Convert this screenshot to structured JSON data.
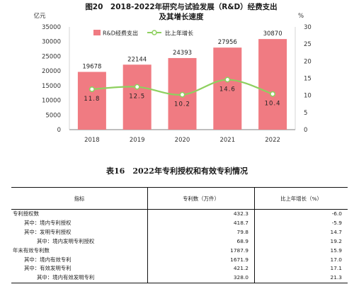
{
  "chart_data": {
    "type": "bar",
    "title": "图20　2018-2022年研究与试验发展（R&D）经费支出",
    "title_line2": "及其增长速度",
    "y_left_unit": "亿元",
    "y_right_unit": "%",
    "categories": [
      "2018",
      "2019",
      "2020",
      "2021",
      "2022"
    ],
    "series": [
      {
        "name": "R&D经费支出",
        "kind": "bar",
        "axis": "left",
        "color": "#f07b82",
        "values": [
          19678,
          22144,
          24393,
          27956,
          30870
        ],
        "labels": [
          "19678",
          "22144",
          "24393",
          "27956",
          "30870"
        ]
      },
      {
        "name": "比上年增长",
        "kind": "line",
        "axis": "right",
        "color": "#8ed05f",
        "values": [
          11.8,
          12.5,
          10.2,
          14.6,
          10.4
        ],
        "labels": [
          "11.8",
          "12.5",
          "10.2",
          "14.6",
          "10.4"
        ]
      }
    ],
    "ylim_left": [
      0,
      35000
    ],
    "yticks_left": [
      0,
      5000,
      10000,
      15000,
      20000,
      25000,
      30000,
      35000
    ],
    "ylim_right": [
      0,
      30
    ],
    "yticks_right": [
      0,
      5,
      10,
      15,
      20,
      25,
      30
    ],
    "legend": "top-left",
    "grid": false
  },
  "table": {
    "title": "表16　2022年专利授权和有效专利情况",
    "headers": [
      "指标",
      "专利数（万件）",
      "比上年增长（%）"
    ],
    "rows": [
      {
        "label": "专利授权数",
        "indent": 0,
        "count": "432.3",
        "growth": "-6.0"
      },
      {
        "label": "其中：境内专利授权",
        "indent": 1,
        "count": "418.7",
        "growth": "-5.9"
      },
      {
        "label": "其中：发明专利授权",
        "indent": 1,
        "count": "79.8",
        "growth": "14.7"
      },
      {
        "label": "其中：境内发明专利授权",
        "indent": 2,
        "count": "68.9",
        "growth": "19.2"
      },
      {
        "label": "年末有效专利数",
        "indent": 0,
        "count": "1787.9",
        "growth": "15.9"
      },
      {
        "label": "其中：境内有效专利",
        "indent": 1,
        "count": "1671.9",
        "growth": "17.0"
      },
      {
        "label": "其中：有效发明专利",
        "indent": 1,
        "count": "421.2",
        "growth": "17.1"
      },
      {
        "label": "其中：境内有效发明专利",
        "indent": 2,
        "count": "328.0",
        "growth": "21.3"
      }
    ]
  }
}
